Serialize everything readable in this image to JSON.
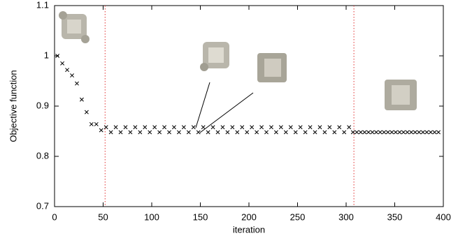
{
  "chart_data": {
    "type": "scatter",
    "xlabel": "iteration",
    "ylabel": "Objective function",
    "xlim": [
      0,
      400
    ],
    "xticks": [
      0,
      50,
      100,
      150,
      200,
      250,
      300,
      350,
      400
    ],
    "ylim": [
      0.7,
      1.1
    ],
    "yticks": [
      0.7,
      0.8,
      0.9,
      1,
      1.1
    ],
    "color": "#000000",
    "vlines": [
      52,
      308
    ],
    "vline_color": "#e03030",
    "x": [
      3,
      8,
      13,
      18,
      23,
      28,
      33,
      38,
      43,
      48,
      53,
      58,
      63,
      68,
      73,
      78,
      83,
      88,
      93,
      98,
      103,
      108,
      113,
      118,
      123,
      128,
      133,
      138,
      143,
      148,
      153,
      158,
      163,
      168,
      173,
      178,
      183,
      188,
      193,
      198,
      203,
      208,
      213,
      218,
      223,
      228,
      233,
      238,
      243,
      248,
      253,
      258,
      263,
      268,
      273,
      278,
      283,
      288,
      293,
      298,
      303,
      307,
      311,
      315,
      319,
      323,
      327,
      331,
      335,
      339,
      343,
      347,
      351,
      355,
      359,
      363,
      367,
      371,
      375,
      379,
      383,
      387,
      391,
      395
    ],
    "y": [
      1.0,
      0.985,
      0.972,
      0.961,
      0.945,
      0.913,
      0.888,
      0.864,
      0.864,
      0.852,
      0.858,
      0.848,
      0.858,
      0.848,
      0.858,
      0.848,
      0.858,
      0.848,
      0.858,
      0.848,
      0.858,
      0.848,
      0.858,
      0.848,
      0.858,
      0.848,
      0.858,
      0.848,
      0.858,
      0.848,
      0.858,
      0.848,
      0.858,
      0.848,
      0.858,
      0.848,
      0.858,
      0.848,
      0.858,
      0.848,
      0.858,
      0.848,
      0.858,
      0.848,
      0.858,
      0.848,
      0.858,
      0.848,
      0.858,
      0.848,
      0.858,
      0.848,
      0.858,
      0.848,
      0.858,
      0.848,
      0.858,
      0.848,
      0.858,
      0.848,
      0.858,
      0.848,
      0.848,
      0.848,
      0.848,
      0.848,
      0.848,
      0.848,
      0.848,
      0.848,
      0.848,
      0.848,
      0.848,
      0.848,
      0.848,
      0.848,
      0.848,
      0.848,
      0.848,
      0.848,
      0.848,
      0.848,
      0.848,
      0.848
    ]
  }
}
